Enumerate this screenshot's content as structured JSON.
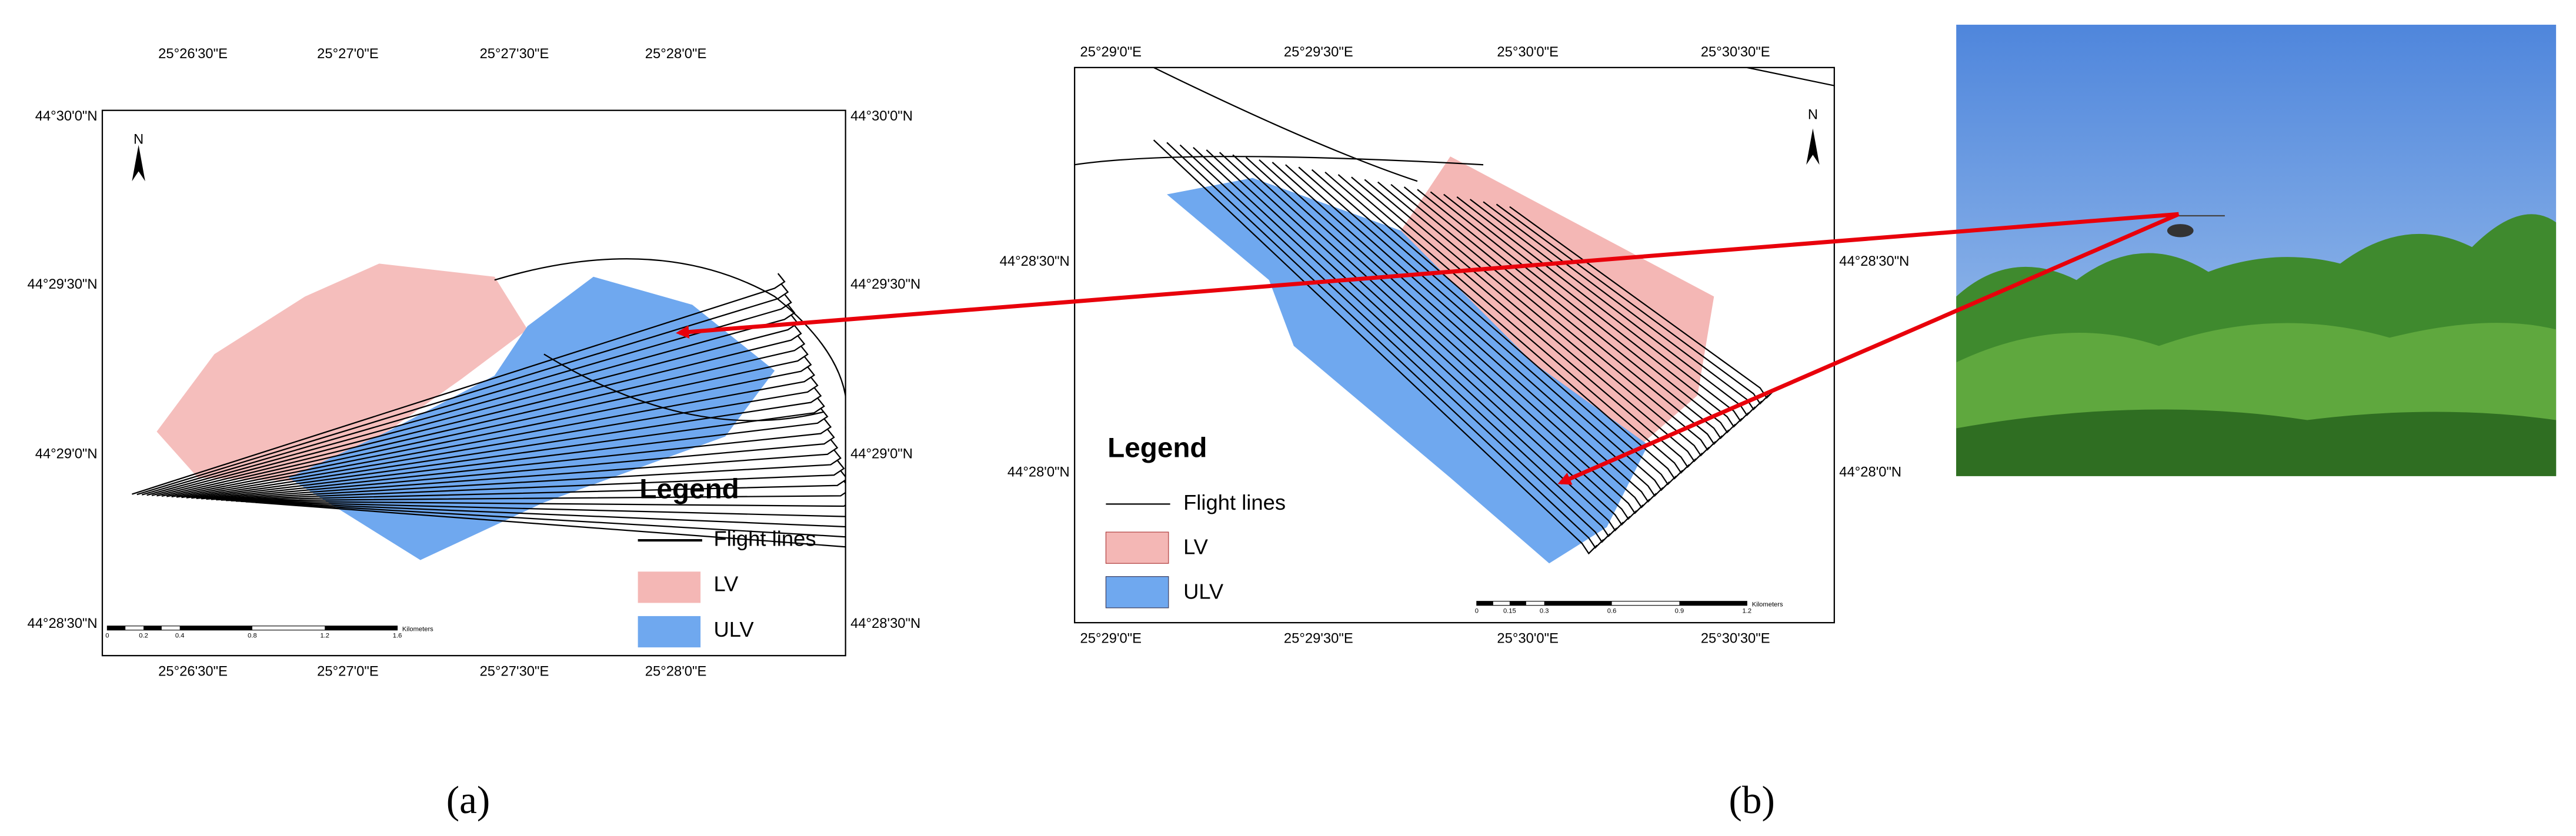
{
  "panels": [
    {
      "caption": "(a)",
      "north": "N",
      "top_labels": [
        "25°26'30\"E",
        "25°27'0\"E",
        "25°27'30\"E",
        "25°28'0\"E"
      ],
      "bottom_labels": [
        "25°26'30\"E",
        "25°27'0\"E",
        "25°27'30\"E",
        "25°28'0\"E"
      ],
      "left_labels": [
        "44°30'0\"N",
        "44°29'30\"N",
        "44°29'0\"N",
        "44°28'30\"N"
      ],
      "right_labels": [
        "44°30'0\"N",
        "44°29'30\"N",
        "44°29'0\"N",
        "44°28'30\"N"
      ],
      "legend": {
        "title": "Legend",
        "items": [
          "Flight lines",
          "LV",
          "ULV"
        ]
      },
      "scale": {
        "ticks": [
          "0",
          "0.2",
          "0.4",
          "0.8",
          "1.2",
          "1.6"
        ],
        "unit": "Kilometers"
      }
    },
    {
      "caption": "(b)",
      "north": "N",
      "top_labels": [
        "25°29'0\"E",
        "25°29'30\"E",
        "25°30'0\"E",
        "25°30'30\"E"
      ],
      "bottom_labels": [
        "25°29'0\"E",
        "25°29'30\"E",
        "25°30'0\"E",
        "25°30'30\"E"
      ],
      "left_labels": [
        "44°28'30\"N",
        "44°28'0\"N"
      ],
      "right_labels": [
        "44°28'30\"N",
        "44°28'0\"N"
      ],
      "legend": {
        "title": "Legend",
        "items": [
          "Flight lines",
          "LV",
          "ULV"
        ]
      },
      "scale": {
        "ticks": [
          "0",
          "0.15",
          "0.3",
          "0.6",
          "0.9",
          "1.2"
        ],
        "unit": "Kilometers"
      }
    }
  ]
}
